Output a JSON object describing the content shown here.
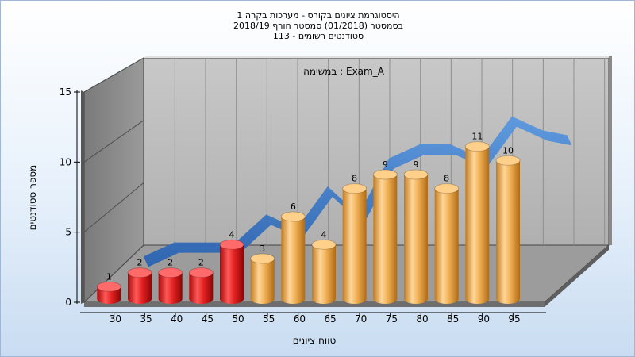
{
  "chart_data": {
    "type": "bar",
    "title_lines": [
      "היסטוגרמת ציונים בקורס - מערכות בקרה 1",
      "בסמסטר  (01/2018)  סמסטר חורף  2018/19",
      "113 - סטודנטים רשומים"
    ],
    "annotation": "במשימה : Exam_A",
    "xlabel": "טווח ציונים",
    "ylabel": "מספר סטודנטים",
    "ylim": [
      0,
      15
    ],
    "yticks": [
      0,
      5,
      10,
      15
    ],
    "categories": [
      "30",
      "35",
      "40",
      "45",
      "50",
      "55",
      "60",
      "65",
      "70",
      "75",
      "80",
      "85",
      "90",
      "95"
    ],
    "values": [
      1,
      2,
      2,
      2,
      4,
      3,
      6,
      4,
      8,
      9,
      9,
      8,
      11,
      10
    ],
    "bar_colors": [
      "#e02020",
      "#e02020",
      "#e02020",
      "#e02020",
      "#e02020",
      "#e8a040",
      "#e8a040",
      "#e8a040",
      "#e8a040",
      "#e8a040",
      "#e8a040",
      "#e8a040",
      "#e8a040",
      "#e8a040"
    ],
    "ribbon_color": "#3a78c8",
    "grid": true,
    "style": "3d-cylinder"
  }
}
